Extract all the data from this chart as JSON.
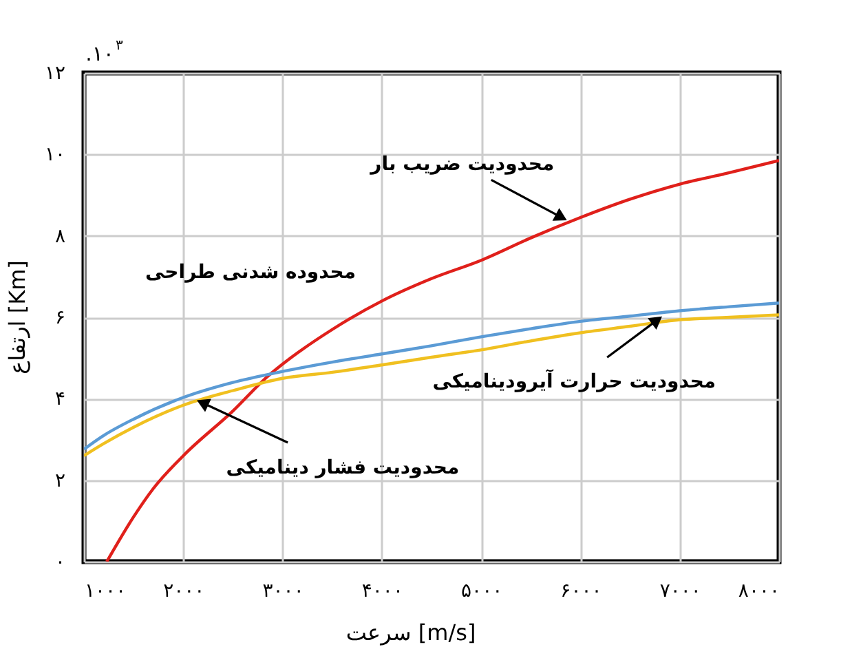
{
  "chart_data": {
    "type": "line",
    "xlabel": "سرعت [m/s]",
    "ylabel": "ارتفاع [Km]",
    "xlim": [
      1000,
      8000
    ],
    "ylim": [
      0,
      12
    ],
    "xticks": [
      {
        "value": 1000,
        "label": "۱۰۰۰"
      },
      {
        "value": 2000,
        "label": "۲۰۰۰"
      },
      {
        "value": 3000,
        "label": "۳۰۰۰"
      },
      {
        "value": 4000,
        "label": "۴۰۰۰"
      },
      {
        "value": 5000,
        "label": "۵۰۰۰"
      },
      {
        "value": 6000,
        "label": "۶۰۰۰"
      },
      {
        "value": 7000,
        "label": "۷۰۰۰"
      },
      {
        "value": 8000,
        "label": "۸۰۰۰"
      }
    ],
    "yticks": [
      {
        "value": 0,
        "label": "۰"
      },
      {
        "value": 2,
        "label": "۲"
      },
      {
        "value": 4,
        "label": "۴"
      },
      {
        "value": 6,
        "label": "۶"
      },
      {
        "value": 8,
        "label": "۸"
      },
      {
        "value": 10,
        "label": "۱۰"
      },
      {
        "value": 12,
        "label": "۱۲"
      }
    ],
    "grid": true,
    "marker": "none",
    "line_style": "solid",
    "series": [
      {
        "color": "#e0201b",
        "x": [
          1230,
          1500,
          1700,
          2000,
          2500,
          2850,
          3000,
          3500,
          4000,
          4500,
          5000,
          5500,
          6000,
          6500,
          7000,
          7500,
          8000
        ],
        "values": [
          0,
          1.1,
          1.8,
          2.6,
          3.7,
          4.55,
          4.85,
          5.7,
          6.4,
          6.95,
          7.4,
          7.95,
          8.45,
          8.9,
          9.27,
          9.55,
          9.85
        ]
      },
      {
        "color": "#5b9bd5",
        "x": [
          1000,
          1200,
          1500,
          2000,
          2500,
          3000,
          3500,
          4000,
          4500,
          5000,
          5500,
          6000,
          6500,
          7000,
          7500,
          8000
        ],
        "values": [
          2.76,
          3.1,
          3.5,
          4.03,
          4.4,
          4.67,
          4.9,
          5.1,
          5.3,
          5.52,
          5.72,
          5.9,
          6.03,
          6.16,
          6.26,
          6.35
        ]
      },
      {
        "color": "#f0c020",
        "x": [
          1000,
          1200,
          1500,
          2000,
          2500,
          3000,
          3500,
          4000,
          4500,
          5000,
          5500,
          6000,
          6500,
          7000,
          7500,
          8000
        ],
        "values": [
          2.6,
          2.9,
          3.3,
          3.84,
          4.2,
          4.5,
          4.65,
          4.83,
          5.02,
          5.2,
          5.42,
          5.62,
          5.78,
          5.94,
          6.0,
          6.06
        ]
      }
    ],
    "annotations": [
      ".۱۰$^{۳}$",
      "محدوده شدنی طراحی",
      {
        "text": "محدودیت ضریب بار",
        "x": 5850,
        "y": 8.4
      },
      {
        "text": "محدودیت حرارت آیرودینامیکی",
        "x": 6810,
        "y": 6.0
      },
      {
        "text": "محدودیت فشار دینامیکی",
        "x": 2150,
        "y": 3.95
      }
    ]
  }
}
